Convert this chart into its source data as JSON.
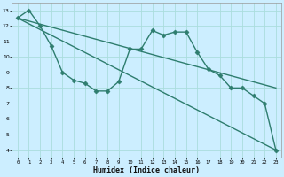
{
  "xlabel": "Humidex (Indice chaleur)",
  "bg_color": "#cceeff",
  "grid_color": "#aadddd",
  "line_color": "#2e7d6e",
  "xlim": [
    -0.5,
    23.5
  ],
  "ylim": [
    3.5,
    13.5
  ],
  "yticks": [
    4,
    5,
    6,
    7,
    8,
    9,
    10,
    11,
    12,
    13
  ],
  "xticks": [
    0,
    1,
    2,
    3,
    4,
    5,
    6,
    7,
    8,
    9,
    10,
    11,
    12,
    13,
    14,
    15,
    16,
    17,
    18,
    19,
    20,
    21,
    22,
    23
  ],
  "line1_x": [
    0,
    1,
    2,
    3,
    4,
    5,
    6,
    7,
    8,
    9,
    10,
    11,
    12,
    13,
    14,
    15,
    16,
    17,
    18,
    19,
    20,
    21,
    22,
    23
  ],
  "line1_y": [
    12.5,
    13.0,
    12.0,
    10.7,
    9.0,
    8.5,
    8.3,
    7.8,
    7.8,
    8.4,
    10.5,
    10.5,
    11.7,
    11.4,
    11.6,
    11.6,
    10.3,
    9.2,
    8.8,
    8.0,
    8.0,
    7.5,
    7.0,
    4.0
  ],
  "line2_x": [
    0,
    23
  ],
  "line2_y": [
    12.5,
    4.0
  ],
  "line3_x": [
    0,
    23
  ],
  "line3_y": [
    12.5,
    8.0
  ]
}
